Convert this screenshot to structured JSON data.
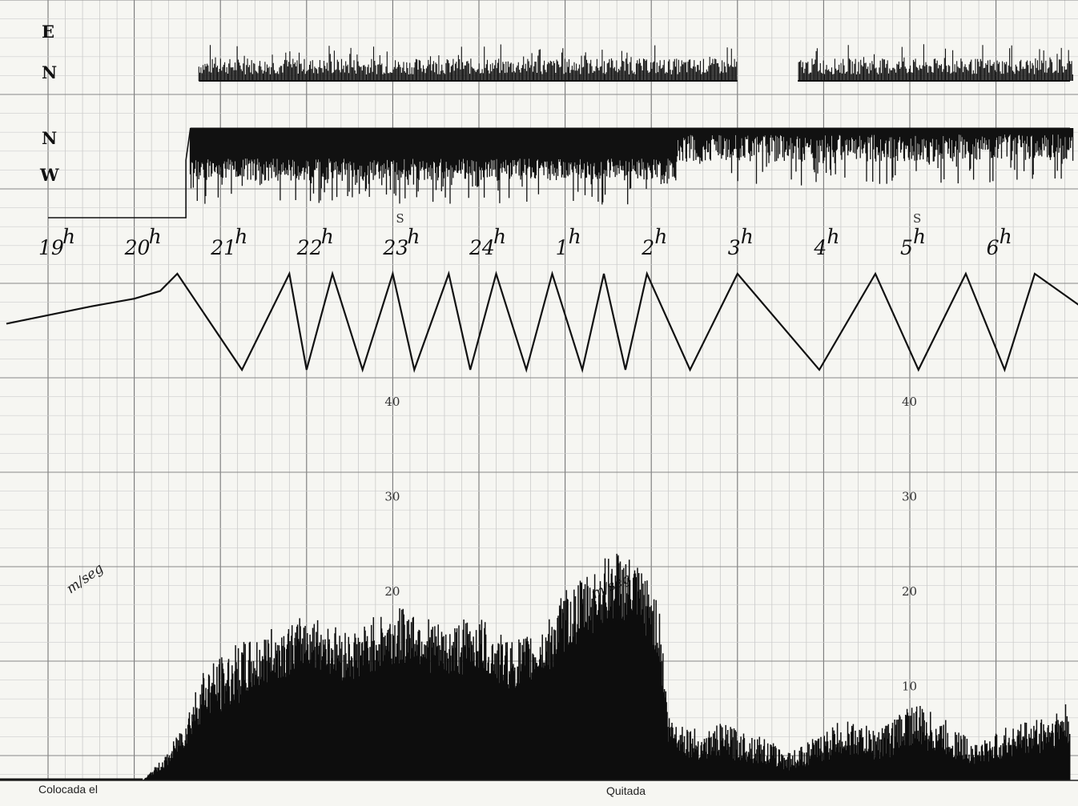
{
  "chart_data": [
    {
      "type": "line",
      "panel": "direction-trace",
      "row_labels": [
        "E",
        "N",
        "N",
        "W"
      ],
      "x_range": [
        19,
        31
      ],
      "spike_labels": [
        {
          "text": "S",
          "x": 23.0
        },
        {
          "text": "S",
          "x": 29.0
        }
      ],
      "series": [
        {
          "band": "upper",
          "start": 20.75,
          "end": 31,
          "gap": [
            27.0,
            27.7
          ]
        },
        {
          "band": "lower",
          "start": 20.65,
          "end": 31,
          "step": {
            "from": 19.0,
            "to": 20.6
          }
        }
      ]
    },
    {
      "type": "line",
      "panel": "hour-zigzag",
      "hour_labels": [
        {
          "text": "19",
          "x": 19
        },
        {
          "text": "20",
          "x": 20
        },
        {
          "text": "21",
          "x": 21
        },
        {
          "text": "22",
          "x": 22
        },
        {
          "text": "23",
          "x": 23
        },
        {
          "text": "24",
          "x": 24
        },
        {
          "text": "1",
          "x": 25
        },
        {
          "text": "2",
          "x": 26
        },
        {
          "text": "3",
          "x": 27
        },
        {
          "text": "4",
          "x": 28
        },
        {
          "text": "5",
          "x": 29
        },
        {
          "text": "6",
          "x": 30
        }
      ],
      "hour_suffix": "h",
      "x_range": [
        19,
        31
      ],
      "y_range": [
        0,
        1
      ],
      "series": [
        {
          "x": [
            19.0,
            19.5,
            20.0,
            20.3,
            20.5,
            21.25,
            21.8,
            22.0,
            22.3,
            22.65,
            23.0,
            23.25,
            23.65,
            23.9,
            24.2,
            24.55,
            24.85,
            25.2,
            25.45,
            25.7,
            25.95,
            26.45,
            27.0,
            27.95,
            28.6,
            29.1,
            29.65,
            30.1,
            30.45,
            31.0
          ],
          "y": [
            0.48,
            0.66,
            0.74,
            0.82,
            1.0,
            0.0,
            1.0,
            0.0,
            1.0,
            0.0,
            1.0,
            0.0,
            1.0,
            0.0,
            1.0,
            0.0,
            1.0,
            0.0,
            1.0,
            0.0,
            1.0,
            0.0,
            1.0,
            0.0,
            1.0,
            0.0,
            1.0,
            0.0,
            1.0,
            0.65
          ]
        }
      ]
    },
    {
      "type": "area",
      "panel": "wind-speed",
      "y_unit": "m/seg",
      "y_ticks": [
        10,
        20,
        30,
        40
      ],
      "ylim": [
        0,
        48
      ],
      "x_range": [
        19,
        31
      ],
      "grid": true,
      "series": [
        {
          "x": [
            19.0,
            20.1,
            20.2,
            20.4,
            20.6,
            20.8,
            21.0,
            21.2,
            21.4,
            21.6,
            21.8,
            22.0,
            22.2,
            22.4,
            22.6,
            22.8,
            23.0,
            23.2,
            23.4,
            23.6,
            23.8,
            24.0,
            24.2,
            24.4,
            24.6,
            24.8,
            25.0,
            25.2,
            25.4,
            25.6,
            25.8,
            26.0,
            26.1,
            26.2,
            26.4,
            26.6,
            26.8,
            27.0,
            27.2,
            27.4,
            27.6,
            27.8,
            28.0,
            28.2,
            28.4,
            28.6,
            28.8,
            29.0,
            29.2,
            29.4,
            29.6,
            29.8,
            30.0,
            30.2,
            30.4,
            30.6,
            30.8,
            31.0
          ],
          "y": [
            0.0,
            0.0,
            0.5,
            1.5,
            3.5,
            6.5,
            7.0,
            8.0,
            9.0,
            10.5,
            11.0,
            12.0,
            11.5,
            10.5,
            10.5,
            11.5,
            11.5,
            12.5,
            11.5,
            10.5,
            11.0,
            11.5,
            10.0,
            9.5,
            10.0,
            11.0,
            13.5,
            14.5,
            16.0,
            17.0,
            16.0,
            14.5,
            12.0,
            3.5,
            2.5,
            2.0,
            2.5,
            2.0,
            1.8,
            1.5,
            1.0,
            1.5,
            2.0,
            2.5,
            2.5,
            2.0,
            2.5,
            3.5,
            3.0,
            2.5,
            2.0,
            1.5,
            2.0,
            2.5,
            2.5,
            3.0,
            3.5,
            4.0
          ],
          "gust": [
            0.0,
            0.0,
            1.0,
            3.0,
            7.0,
            12.0,
            13.0,
            14.5,
            15.0,
            16.0,
            16.5,
            17.5,
            17.0,
            16.0,
            16.0,
            17.5,
            18.0,
            18.5,
            17.5,
            16.0,
            17.0,
            17.5,
            15.5,
            15.0,
            15.5,
            17.0,
            20.0,
            21.5,
            23.0,
            24.5,
            23.0,
            21.0,
            18.0,
            7.0,
            6.0,
            5.0,
            6.0,
            5.5,
            5.0,
            4.0,
            3.0,
            4.0,
            5.0,
            6.5,
            6.0,
            5.5,
            6.5,
            8.5,
            7.5,
            6.5,
            5.0,
            4.0,
            5.0,
            6.0,
            6.5,
            7.0,
            8.0,
            9.0
          ]
        }
      ]
    }
  ],
  "footer": {
    "placed_label": "Colocada el",
    "removed_label": "Quitada"
  }
}
